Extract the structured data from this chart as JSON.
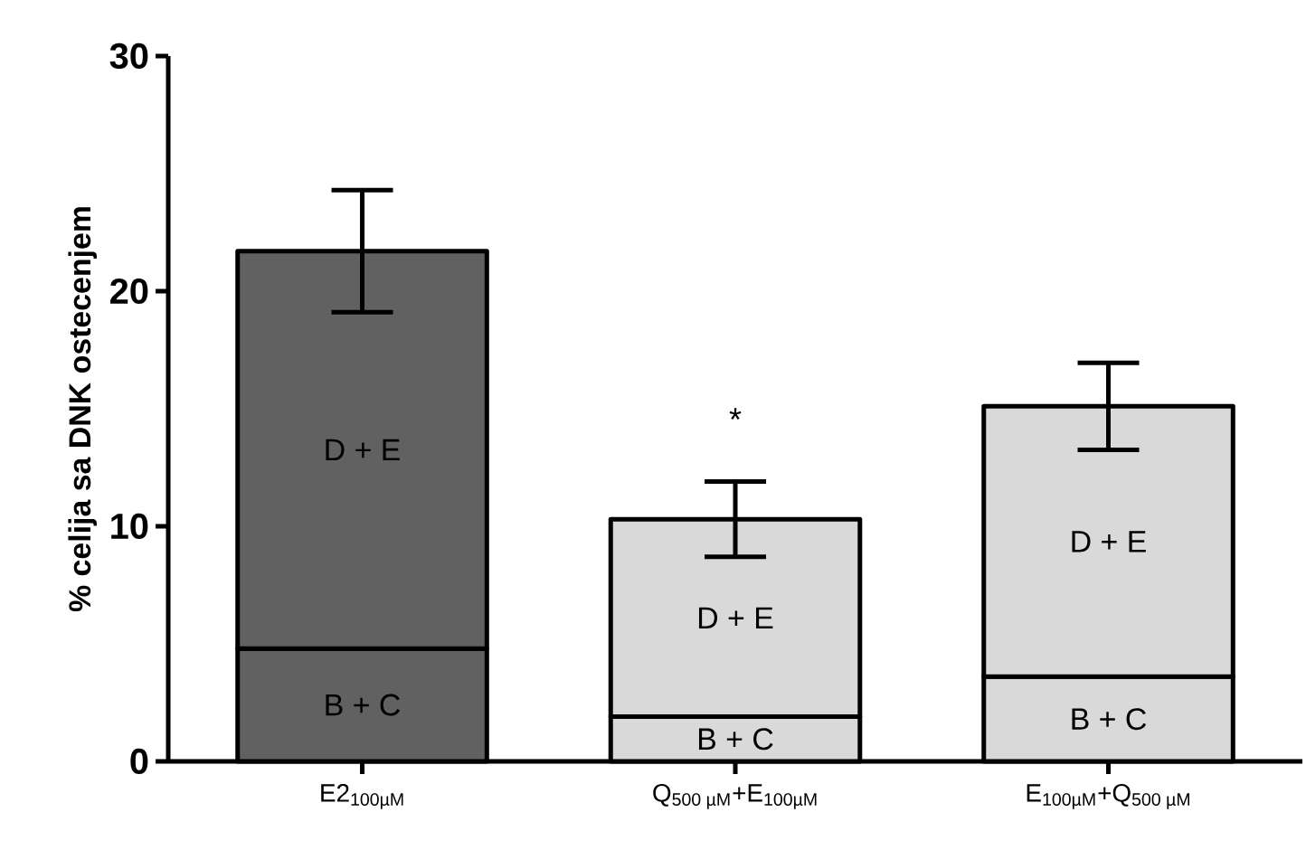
{
  "chart_data": {
    "type": "bar",
    "stacked": true,
    "ylabel": "% celija sa DNK ostecenjem",
    "categories": [
      "E2$_{100µM}$",
      "Q$_{500 µM}$+E$_{100µM}$",
      "E$_{100µM}$+Q$_{500 µM}$"
    ],
    "series": [
      {
        "name": "B + C",
        "colors": [
          "#616161",
          "#d9d9d9",
          "#d9d9d9"
        ],
        "values": [
          4.8,
          1.9,
          3.6
        ]
      },
      {
        "name": "D + E",
        "colors": [
          "#616161",
          "#d9d9d9",
          "#d9d9d9"
        ],
        "values": [
          16.9,
          8.4,
          11.5
        ],
        "errors": [
          2.6,
          1.6,
          1.85
        ]
      }
    ],
    "ylim": [
      0,
      30
    ],
    "yticks": [
      0,
      10,
      20,
      30
    ],
    "grid": false,
    "legend": false,
    "annotations": [
      "*"
    ]
  }
}
